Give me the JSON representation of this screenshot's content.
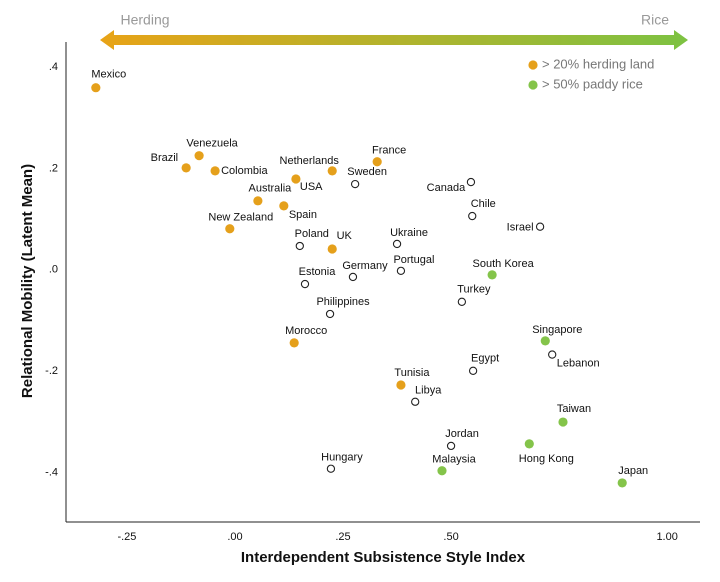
{
  "chart_data": {
    "type": "scatter",
    "x_label": "Interdependent Subsistence Style Index",
    "y_label": "Relational Mobility (Latent Mean)",
    "arrow": {
      "left": "Herding",
      "right": "Rice",
      "left_color": "#e8a317",
      "right_color": "#7dc242"
    },
    "xlim": [
      -0.391,
      1.076
    ],
    "ylim": [
      -0.497,
      0.453
    ],
    "xticks": [
      {
        "value": -0.25,
        "label": "-.25"
      },
      {
        "value": 0,
        "label": ".00"
      },
      {
        "value": 0.25,
        "label": ".25"
      },
      {
        "value": 0.5,
        "label": ".50"
      },
      {
        "value": 1,
        "label": "1.00"
      }
    ],
    "yticks": [
      {
        "value": 0.4,
        "label": ".4"
      },
      {
        "value": 0.2,
        "label": ".2"
      },
      {
        "value": 0,
        "label": ".0"
      },
      {
        "value": -0.2,
        "label": "-.2"
      },
      {
        "value": -0.4,
        "label": "-.4"
      }
    ],
    "legend": "top-right",
    "series": [
      {
        "name": "> 20% herding land",
        "color": "#e5a01b",
        "marker": "filled",
        "labels": [
          "Mexico",
          "Brazil",
          "Venezuela",
          "Colombia",
          "Australia",
          "Spain",
          "USA",
          "Netherlands",
          "France",
          "New Zealand",
          "UK",
          "Morocco",
          "Tunisia"
        ],
        "x": [
          -0.322,
          -0.113,
          -0.083,
          -0.046,
          0.053,
          0.113,
          0.141,
          0.225,
          0.329,
          -0.012,
          0.225,
          0.137,
          0.384
        ],
        "values": [
          0.359,
          0.201,
          0.225,
          0.195,
          0.136,
          0.126,
          0.179,
          0.195,
          0.213,
          0.081,
          0.041,
          -0.144,
          -0.227
        ]
      },
      {
        "name": "> 50% paddy rice",
        "color": "#84c44a",
        "marker": "filled",
        "labels": [
          "South Korea",
          "Singapore",
          "Taiwan",
          "Hong Kong",
          "Malaysia",
          "Japan"
        ],
        "x": [
          0.595,
          0.718,
          0.759,
          0.681,
          0.479,
          0.896
        ],
        "values": [
          -0.01,
          -0.14,
          -0.3,
          -0.343,
          -0.396,
          -0.42
        ]
      },
      {
        "color": "#222222",
        "marker": "hollow",
        "labels": [
          "Sweden",
          "Canada",
          "Chile",
          "Israel",
          "Ukraine",
          "Poland",
          "Portugal",
          "Germany",
          "Estonia",
          "Philippines",
          "Turkey",
          "Egypt",
          "Lebanon",
          "Libya",
          "Jordan",
          "Hungary"
        ],
        "x": [
          0.278,
          0.546,
          0.549,
          0.706,
          0.375,
          0.15,
          0.384,
          0.273,
          0.162,
          0.22,
          0.525,
          0.551,
          0.734,
          0.417,
          0.5,
          0.222
        ],
        "values": [
          0.169,
          0.173,
          0.106,
          0.085,
          0.051,
          0.047,
          -0.002,
          -0.014,
          -0.028,
          -0.087,
          -0.063,
          -0.199,
          -0.167,
          -0.26,
          -0.347,
          -0.392
        ]
      }
    ]
  }
}
